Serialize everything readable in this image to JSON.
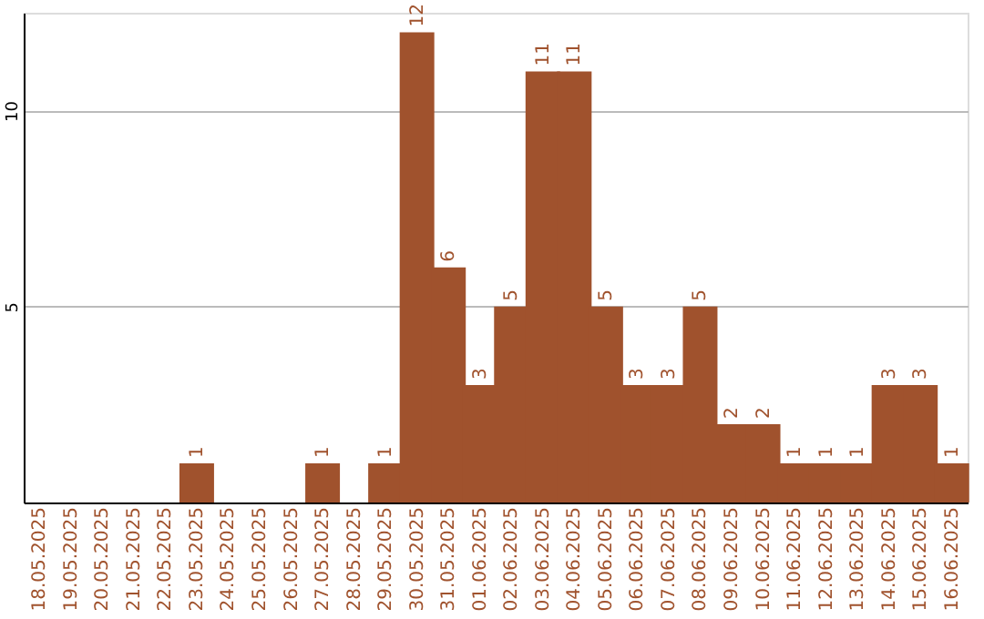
{
  "chart_data": {
    "type": "bar",
    "categories": [
      "18.05.2025",
      "19.05.2025",
      "20.05.2025",
      "21.05.2025",
      "22.05.2025",
      "23.05.2025",
      "24.05.2025",
      "25.05.2025",
      "26.05.2025",
      "27.05.2025",
      "28.05.2025",
      "29.05.2025",
      "30.05.2025",
      "31.05.2025",
      "01.06.2025",
      "02.06.2025",
      "03.06.2025",
      "04.06.2025",
      "05.06.2025",
      "06.06.2025",
      "07.06.2025",
      "08.06.2025",
      "09.06.2025",
      "10.06.2025",
      "11.06.2025",
      "12.06.2025",
      "13.06.2025",
      "14.06.2025",
      "15.06.2025",
      "16.06.2025"
    ],
    "values": [
      0,
      0,
      0,
      0,
      0,
      1,
      0,
      0,
      0,
      1,
      0,
      1,
      12,
      6,
      3,
      5,
      11,
      11,
      5,
      3,
      3,
      5,
      2,
      2,
      1,
      1,
      1,
      3,
      3,
      1
    ],
    "value_labels": [
      null,
      null,
      null,
      null,
      null,
      "1",
      null,
      null,
      null,
      "1",
      null,
      "1",
      "12",
      "6",
      "3",
      "5",
      "11",
      "11",
      "5",
      "3",
      "3",
      "5",
      "2",
      "2",
      "1",
      "1",
      "1",
      "3",
      "3",
      "1"
    ],
    "color": "#a0522d",
    "ylim": [
      0,
      12.5
    ],
    "yticks": [
      5,
      10
    ],
    "grid": "y"
  }
}
